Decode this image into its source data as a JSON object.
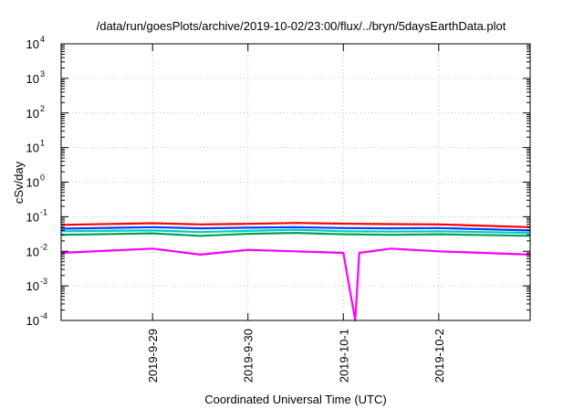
{
  "chart_data": {
    "type": "line",
    "title": "/data/run/goesPlots/archive/2019-10-02/23:00/flux/../bryn/5daysEarthData.plot",
    "xlabel": "Coordinated Universal Time (UTC)",
    "ylabel": "cSv/day",
    "yscale": "log",
    "ylim": [
      0.0001,
      10000
    ],
    "y_ticks": [
      {
        "base": "10",
        "exp": "-4",
        "value": 0.0001
      },
      {
        "base": "10",
        "exp": "-3",
        "value": 0.001
      },
      {
        "base": "10",
        "exp": "-2",
        "value": 0.01
      },
      {
        "base": "10",
        "exp": "-1",
        "value": 0.1
      },
      {
        "base": "10",
        "exp": "0",
        "value": 1
      },
      {
        "base": "10",
        "exp": "1",
        "value": 10
      },
      {
        "base": "10",
        "exp": "2",
        "value": 100
      },
      {
        "base": "10",
        "exp": "3",
        "value": 1000
      },
      {
        "base": "10",
        "exp": "4",
        "value": 10000
      }
    ],
    "xlim": [
      "2019-09-28T01:00",
      "2019-10-02T23:00"
    ],
    "x_ticks": [
      {
        "label": "2019-9-29",
        "value": "2019-09-29T00:00"
      },
      {
        "label": "2019-9-30",
        "value": "2019-09-30T00:00"
      },
      {
        "label": "2019-10-1",
        "value": "2019-10-01T00:00"
      },
      {
        "label": "2019-10-2",
        "value": "2019-10-02T00:00"
      }
    ],
    "grid": true,
    "series": [
      {
        "color": "#ff0000",
        "x": [
          "2019-09-28T01:00",
          "2019-09-29T00:00",
          "2019-09-29T12:00",
          "2019-09-30T00:00",
          "2019-09-30T12:00",
          "2019-10-01T00:00",
          "2019-10-01T12:00",
          "2019-10-02T00:00",
          "2019-10-02T23:00"
        ],
        "y": [
          0.058,
          0.065,
          0.06,
          0.062,
          0.066,
          0.063,
          0.061,
          0.06,
          0.05
        ]
      },
      {
        "color": "#00a050",
        "x": [
          "2019-09-28T01:00",
          "2019-09-29T00:00",
          "2019-09-29T12:00",
          "2019-09-30T00:00",
          "2019-09-30T12:00",
          "2019-10-01T00:00",
          "2019-10-01T12:00",
          "2019-10-02T00:00",
          "2019-10-02T23:00"
        ],
        "y": [
          0.03,
          0.033,
          0.028,
          0.032,
          0.034,
          0.031,
          0.03,
          0.031,
          0.028
        ]
      },
      {
        "color": "#00cccc",
        "x": [
          "2019-09-28T01:00",
          "2019-09-29T00:00",
          "2019-09-29T12:00",
          "2019-09-30T00:00",
          "2019-09-30T12:00",
          "2019-10-01T00:00",
          "2019-10-01T12:00",
          "2019-10-02T00:00",
          "2019-10-02T23:00"
        ],
        "y": [
          0.038,
          0.04,
          0.036,
          0.039,
          0.042,
          0.038,
          0.037,
          0.038,
          0.034
        ]
      },
      {
        "color": "#0040ff",
        "x": [
          "2019-09-28T01:00",
          "2019-09-29T00:00",
          "2019-09-29T12:00",
          "2019-09-30T00:00",
          "2019-09-30T12:00",
          "2019-10-01T00:00",
          "2019-10-01T12:00",
          "2019-10-02T00:00",
          "2019-10-02T23:00"
        ],
        "y": [
          0.045,
          0.05,
          0.046,
          0.048,
          0.05,
          0.047,
          0.046,
          0.047,
          0.04
        ]
      },
      {
        "color": "#ff00ff",
        "x": [
          "2019-09-28T01:00",
          "2019-09-29T00:00",
          "2019-09-29T12:00",
          "2019-09-30T00:00",
          "2019-09-30T12:00",
          "2019-10-01T00:00",
          "2019-10-01T03:00",
          "2019-10-01T04:00",
          "2019-10-01T12:00",
          "2019-10-02T00:00",
          "2019-10-02T23:00"
        ],
        "y": [
          0.009,
          0.012,
          0.008,
          0.011,
          0.01,
          0.009,
          0.0001,
          0.009,
          0.012,
          0.01,
          0.008
        ]
      }
    ]
  }
}
